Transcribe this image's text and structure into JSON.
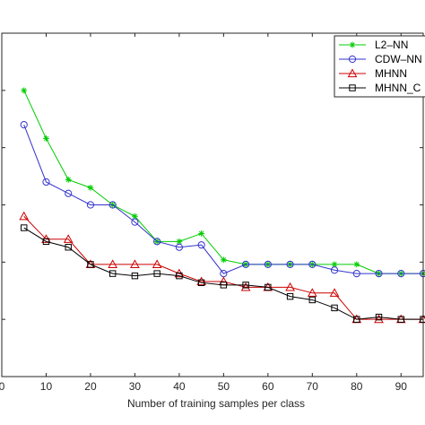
{
  "chart_data": {
    "type": "line",
    "xlabel": "Number of training samples per class",
    "ylabel": "",
    "title": "",
    "xlim": [
      0,
      95
    ],
    "ylim": [
      0.05,
      0.35
    ],
    "xticks": [
      0,
      10,
      20,
      30,
      40,
      50,
      60,
      70,
      80,
      90
    ],
    "xtick_labels": [
      "0",
      "10",
      "20",
      "30",
      "40",
      "50",
      "60",
      "70",
      "80",
      "90"
    ],
    "grid": false,
    "legend_position": "top-right",
    "x": [
      5,
      10,
      15,
      20,
      25,
      30,
      35,
      40,
      45,
      50,
      55,
      60,
      65,
      70,
      75,
      80,
      85,
      90,
      95
    ],
    "series": [
      {
        "name": "L2–NN",
        "color": "#00cc00",
        "marker": "asterisk",
        "values": [
          0.3,
          0.258,
          0.222,
          0.215,
          0.2,
          0.19,
          0.168,
          0.168,
          0.175,
          0.152,
          0.148,
          0.148,
          0.148,
          0.148,
          0.148,
          0.148,
          0.14,
          0.14,
          0.14
        ]
      },
      {
        "name": "CDW–NN",
        "color": "#3333cc",
        "marker": "circle",
        "values": [
          0.27,
          0.22,
          0.21,
          0.2,
          0.2,
          0.185,
          0.168,
          0.163,
          0.165,
          0.14,
          0.148,
          0.148,
          0.148,
          0.148,
          0.143,
          0.14,
          0.14,
          0.14,
          0.14
        ]
      },
      {
        "name": "MHNN",
        "color": "#cc0000",
        "marker": "triangle",
        "values": [
          0.19,
          0.17,
          0.17,
          0.148,
          0.148,
          0.148,
          0.148,
          0.14,
          0.133,
          0.133,
          0.128,
          0.128,
          0.128,
          0.123,
          0.123,
          0.1,
          0.1,
          0.1,
          0.1
        ]
      },
      {
        "name": "MHNN_C",
        "color": "#000000",
        "marker": "square",
        "values": [
          0.18,
          0.168,
          0.163,
          0.148,
          0.14,
          0.138,
          0.14,
          0.138,
          0.132,
          0.13,
          0.13,
          0.128,
          0.12,
          0.117,
          0.11,
          0.1,
          0.102,
          0.1,
          0.1
        ]
      }
    ]
  }
}
